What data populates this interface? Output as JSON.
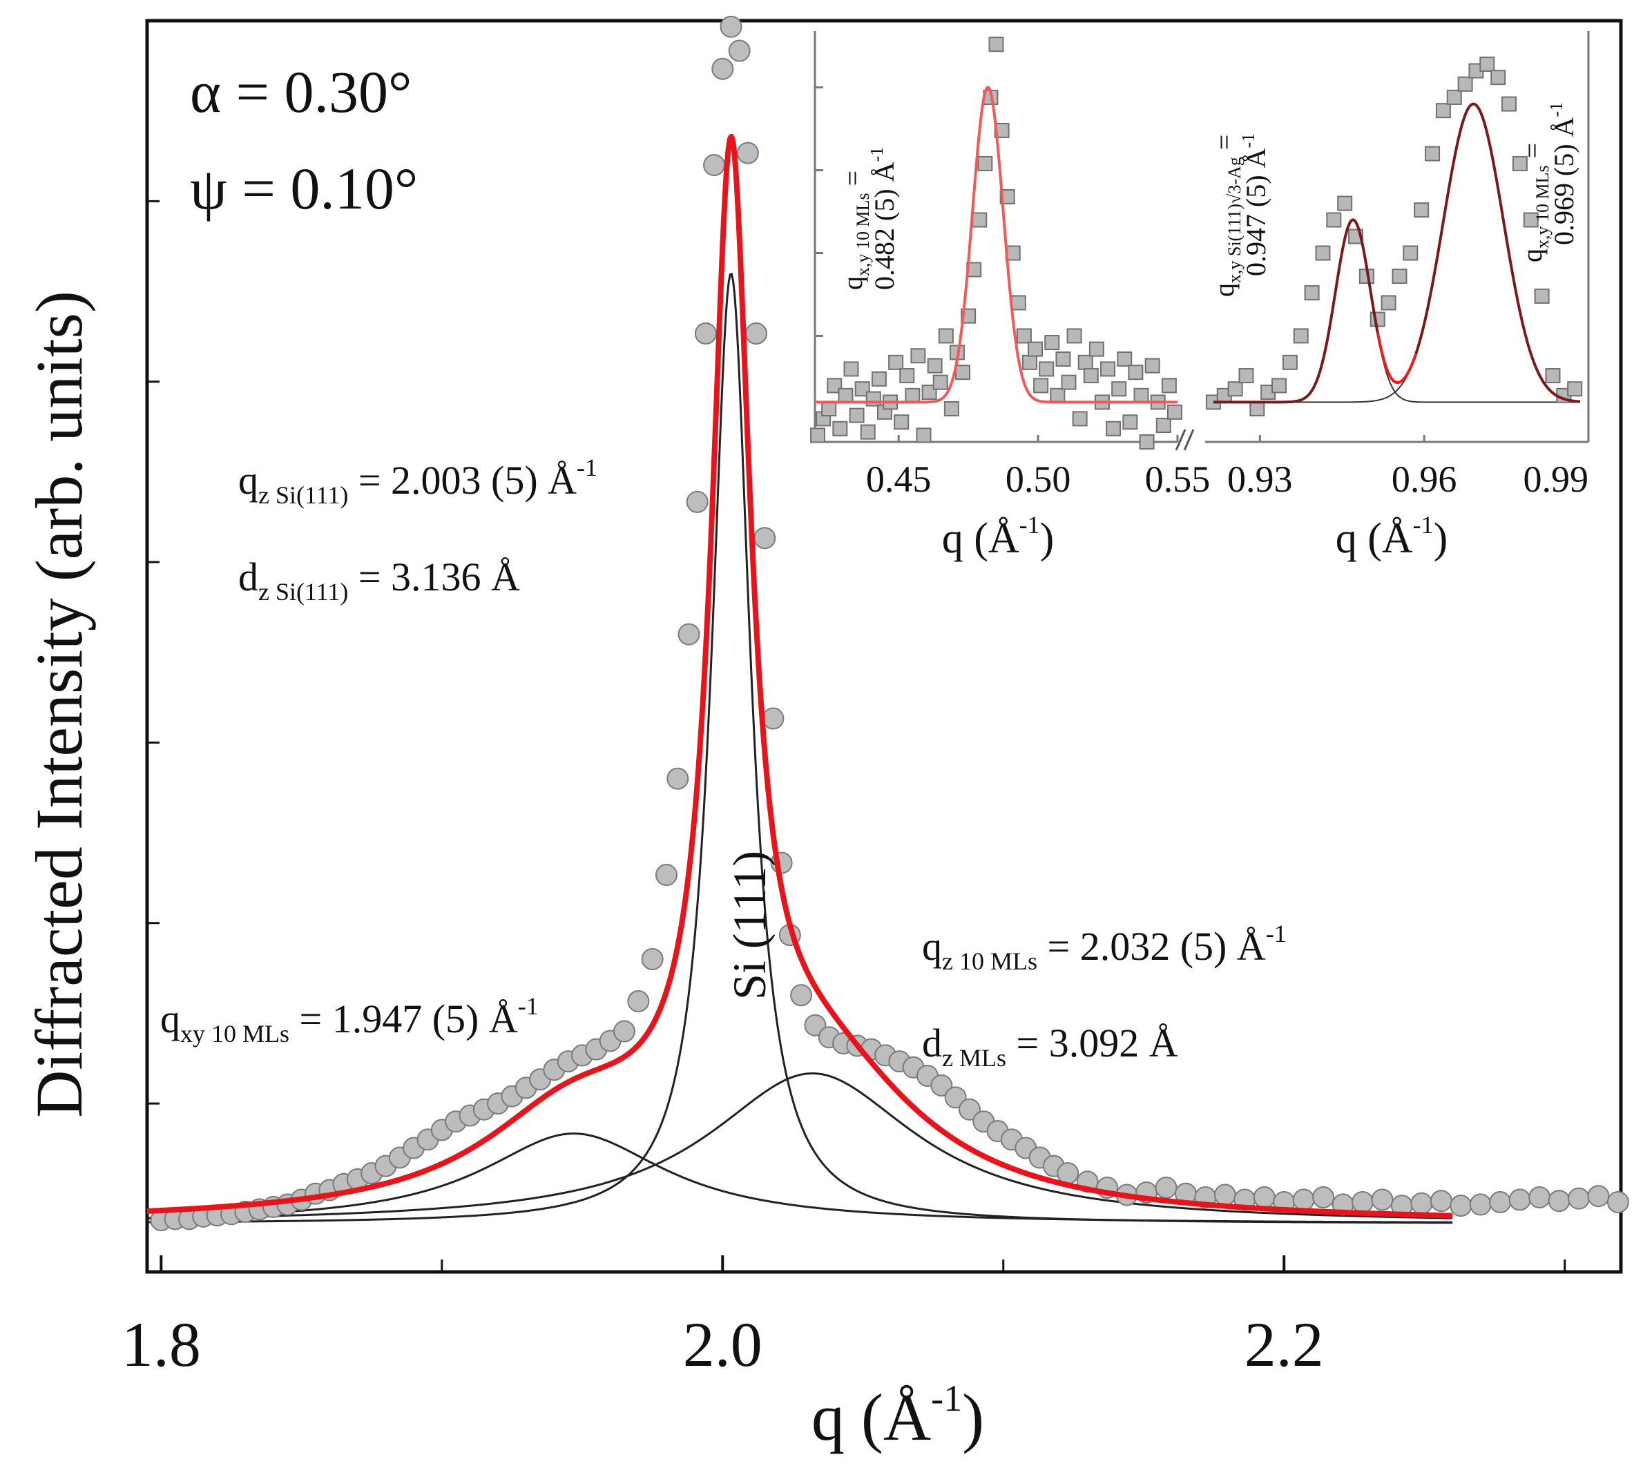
{
  "chart_data": [
    {
      "type": "scatter",
      "title": "",
      "xlabel": "q (Å",
      "xlabel_sup": "-1",
      "xlabel_close": ")",
      "ylabel": "Diffracted Intensity (arb. units)",
      "xlim": [
        1.795,
        2.32
      ],
      "ylim": [
        -0.04,
        1.0
      ],
      "x_ticks": [
        1.8,
        2.0,
        2.2
      ],
      "x_tick_labels": [
        "1.8",
        "2.0",
        "2.2"
      ],
      "x_minor_ticks": [
        1.9,
        2.1,
        2.3
      ],
      "y_ticks": [
        0.1,
        0.25,
        0.4,
        0.55,
        0.7,
        0.85
      ],
      "params": [
        "α = 0.30°",
        "ψ = 0.10°"
      ],
      "peak_label": "Si (111)",
      "annotations": {
        "qz_si": {
          "main": "q",
          "sub": "z Si(111)",
          "rest": " = 2.003 (5) Å",
          "sup": "-1"
        },
        "dz_si": {
          "main": "d",
          "sub": "z Si(111)",
          "rest": " = 3.136 Å"
        },
        "qz_ml": {
          "main": "q",
          "sub": "z 10 MLs",
          "rest": " = 2.032 (5) Å",
          "sup": "-1"
        },
        "dz_ml": {
          "main": "d",
          "sub": "z MLs",
          "rest": " = 3.092 Å"
        },
        "qxy_ml": {
          "main": "q",
          "sub": "xy 10 MLs",
          "rest": " = 1.947 (5) Å",
          "sup": "-1"
        }
      },
      "components": [
        {
          "name": "Si(111) Lorentzian",
          "center": 2.003,
          "amplitude": 0.79,
          "hwhm": 0.0085,
          "color": "#222222"
        },
        {
          "name": "10 MLs qz component",
          "center": 2.032,
          "amplitude": 0.125,
          "hwhm": 0.045,
          "color": "#222222"
        },
        {
          "name": "10 MLs qxy component",
          "center": 1.947,
          "amplitude": 0.075,
          "hwhm": 0.04,
          "color": "#222222"
        }
      ],
      "fit_range": [
        1.795,
        2.26
      ],
      "fit_color": "#e8141c",
      "marker_color": "#bdbdbd",
      "data": {
        "x": [
          1.8,
          1.805,
          1.81,
          1.815,
          1.82,
          1.825,
          1.83,
          1.835,
          1.84,
          1.845,
          1.85,
          1.855,
          1.86,
          1.865,
          1.87,
          1.875,
          1.88,
          1.885,
          1.89,
          1.895,
          1.9,
          1.905,
          1.91,
          1.915,
          1.92,
          1.925,
          1.93,
          1.935,
          1.94,
          1.945,
          1.95,
          1.955,
          1.96,
          1.965,
          1.97,
          1.975,
          1.98,
          1.984,
          1.988,
          1.991,
          1.994,
          1.997,
          2.0,
          2.003,
          2.006,
          2.009,
          2.012,
          2.015,
          2.018,
          2.021,
          2.024,
          2.028,
          2.033,
          2.038,
          2.043,
          2.048,
          2.053,
          2.058,
          2.063,
          2.068,
          2.073,
          2.078,
          2.083,
          2.088,
          2.093,
          2.098,
          2.103,
          2.108,
          2.113,
          2.118,
          2.123,
          2.13,
          2.137,
          2.144,
          2.151,
          2.158,
          2.165,
          2.172,
          2.179,
          2.186,
          2.193,
          2.2,
          2.207,
          2.214,
          2.221,
          2.228,
          2.235,
          2.242,
          2.249,
          2.256,
          2.263,
          2.27,
          2.277,
          2.284,
          2.291,
          2.298,
          2.305,
          2.312,
          2.319
        ],
        "y": [
          0.003,
          0.004,
          0.004,
          0.006,
          0.007,
          0.008,
          0.01,
          0.012,
          0.014,
          0.016,
          0.02,
          0.025,
          0.028,
          0.033,
          0.037,
          0.042,
          0.048,
          0.055,
          0.063,
          0.07,
          0.078,
          0.085,
          0.09,
          0.095,
          0.1,
          0.106,
          0.113,
          0.12,
          0.128,
          0.135,
          0.14,
          0.145,
          0.152,
          0.16,
          0.185,
          0.22,
          0.29,
          0.37,
          0.49,
          0.6,
          0.74,
          0.88,
          0.96,
          0.995,
          0.975,
          0.89,
          0.74,
          0.57,
          0.42,
          0.3,
          0.24,
          0.19,
          0.165,
          0.155,
          0.15,
          0.148,
          0.145,
          0.14,
          0.135,
          0.13,
          0.123,
          0.115,
          0.105,
          0.095,
          0.085,
          0.077,
          0.07,
          0.063,
          0.055,
          0.048,
          0.042,
          0.035,
          0.03,
          0.024,
          0.026,
          0.03,
          0.025,
          0.022,
          0.024,
          0.02,
          0.022,
          0.018,
          0.02,
          0.022,
          0.016,
          0.018,
          0.02,
          0.015,
          0.017,
          0.019,
          0.015,
          0.016,
          0.018,
          0.02,
          0.022,
          0.019,
          0.021,
          0.023,
          0.018
        ]
      }
    },
    {
      "type": "scatter",
      "title": "inset-left",
      "xlabel": "q (Å",
      "xlabel_sup": "-1",
      "xlabel_close": ")",
      "xlim": [
        0.42,
        0.55
      ],
      "ylim": [
        -0.12,
        1.12
      ],
      "x_ticks": [
        0.45,
        0.5,
        0.55
      ],
      "x_tick_labels": [
        "0.45",
        "0.50",
        "0.55"
      ],
      "annotation_line1": {
        "main": "q",
        "sub": "x,y 10 MLs",
        "rest": " ="
      },
      "annotation_line2": {
        "rest": "0.482 (5) Å",
        "sup": "-1"
      },
      "fit": {
        "center": 0.482,
        "amplitude": 0.95,
        "sigma": 0.0055,
        "baseline": 0.0,
        "color": "#f25a5a"
      },
      "data": {
        "x": [
          0.421,
          0.423,
          0.425,
          0.427,
          0.429,
          0.431,
          0.433,
          0.435,
          0.437,
          0.439,
          0.441,
          0.443,
          0.445,
          0.447,
          0.449,
          0.451,
          0.453,
          0.455,
          0.457,
          0.459,
          0.461,
          0.463,
          0.465,
          0.467,
          0.469,
          0.471,
          0.473,
          0.475,
          0.477,
          0.479,
          0.481,
          0.483,
          0.485,
          0.487,
          0.489,
          0.491,
          0.493,
          0.495,
          0.497,
          0.499,
          0.501,
          0.503,
          0.505,
          0.507,
          0.509,
          0.511,
          0.513,
          0.515,
          0.517,
          0.519,
          0.521,
          0.523,
          0.525,
          0.527,
          0.529,
          0.531,
          0.533,
          0.535,
          0.537,
          0.539,
          0.541,
          0.543,
          0.545,
          0.547,
          0.549
        ],
        "y": [
          -0.1,
          -0.05,
          -0.02,
          0.05,
          -0.08,
          0.02,
          0.1,
          -0.04,
          0.04,
          -0.09,
          0.01,
          0.07,
          -0.03,
          0.0,
          0.12,
          -0.06,
          0.08,
          0.02,
          0.14,
          -0.1,
          0.03,
          0.11,
          0.06,
          0.2,
          -0.02,
          0.15,
          0.09,
          0.26,
          0.4,
          0.55,
          0.72,
          0.92,
          1.08,
          0.82,
          0.62,
          0.45,
          0.3,
          0.2,
          0.12,
          0.16,
          0.05,
          0.1,
          0.18,
          0.02,
          0.13,
          0.06,
          0.2,
          -0.05,
          0.12,
          0.08,
          0.16,
          0.0,
          0.1,
          -0.08,
          0.04,
          0.13,
          -0.06,
          0.09,
          0.02,
          -0.12,
          0.11,
          0.0,
          -0.07,
          0.05,
          -0.03
        ]
      }
    },
    {
      "type": "scatter",
      "title": "inset-right",
      "xlabel": "q (Å",
      "xlabel_sup": "-1",
      "xlabel_close": ")",
      "xlim": [
        0.92,
        0.99
      ],
      "ylim": [
        -0.12,
        1.12
      ],
      "x_ticks": [
        0.93,
        0.96,
        0.99
      ],
      "x_tick_labels": [
        "0.93",
        "0.96",
        "0.99"
      ],
      "annotation_a_line1": {
        "main": "q",
        "sub": "x,y Si(111)√3-Ag",
        "rest": " ="
      },
      "annotation_a_line2": {
        "rest": "0.947 (5) Å",
        "sup": "-1"
      },
      "annotation_b_line1": {
        "main": "q",
        "sub": "x,y 10 MLs",
        "rest": " ="
      },
      "annotation_b_line2": {
        "rest": "0.969 (5) Å",
        "sup": "-1"
      },
      "components": [
        {
          "center": 0.947,
          "amplitude": 0.55,
          "sigma": 0.0032,
          "color": "#333333"
        },
        {
          "center": 0.969,
          "amplitude": 0.9,
          "sigma": 0.0055,
          "color": "#333333"
        }
      ],
      "fit_color": "#7a1a1a",
      "fit_highlight_color": "#e82020",
      "data": {
        "x": [
          0.9215,
          0.9235,
          0.9255,
          0.9275,
          0.9295,
          0.9315,
          0.9335,
          0.9355,
          0.9375,
          0.9395,
          0.9415,
          0.9435,
          0.9455,
          0.9475,
          0.9495,
          0.9515,
          0.9535,
          0.9555,
          0.9575,
          0.9595,
          0.9615,
          0.9635,
          0.9655,
          0.9675,
          0.9695,
          0.9715,
          0.9735,
          0.9755,
          0.9775,
          0.9795,
          0.9815,
          0.9835,
          0.9855,
          0.9875
        ],
        "y": [
          0.0,
          0.02,
          0.04,
          0.08,
          -0.02,
          0.03,
          0.05,
          0.12,
          0.2,
          0.33,
          0.45,
          0.55,
          0.6,
          0.5,
          0.38,
          0.25,
          0.3,
          0.38,
          0.45,
          0.58,
          0.75,
          0.88,
          0.92,
          0.96,
          1.0,
          1.02,
          0.98,
          0.9,
          0.72,
          0.55,
          0.32,
          0.08,
          0.02,
          0.04
        ]
      }
    }
  ]
}
